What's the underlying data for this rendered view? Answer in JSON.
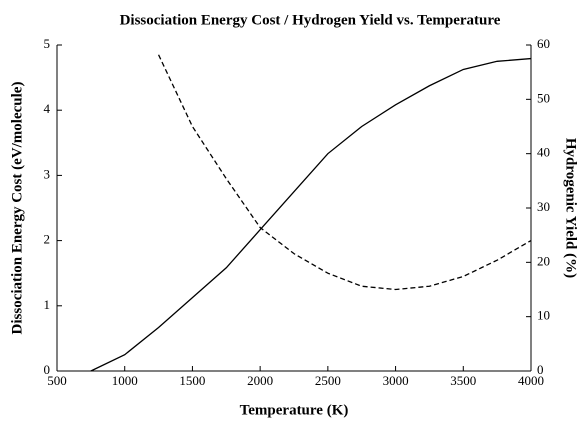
{
  "chart_data": {
    "type": "line",
    "title": "Dissociation Energy Cost / Hydrogen Yield vs. Temperature",
    "xlabel": "Temperature (K)",
    "ylabel": "Dissociation Energy Cost (eV/molecule)",
    "y2label": "Hydrogenic Yield (%)",
    "x": [
      750,
      1000,
      1250,
      1500,
      1750,
      2000,
      2250,
      2500,
      2750,
      3000,
      3250,
      3500,
      3750,
      4000
    ],
    "series": [
      {
        "color": "#000000",
        "style": "dashed",
        "axis": "y",
        "values": [
          null,
          null,
          4.85,
          3.75,
          2.95,
          2.2,
          1.8,
          1.5,
          1.3,
          1.25,
          1.3,
          1.45,
          1.7,
          2.0
        ]
      },
      {
        "color": "#000000",
        "style": "solid",
        "axis": "y2",
        "values": [
          0,
          3,
          8,
          13.5,
          19,
          26,
          33,
          40,
          45,
          49,
          52.5,
          55.5,
          57,
          57.5
        ]
      }
    ],
    "xlim": [
      500,
      4000
    ],
    "xticks": [
      500,
      1000,
      1500,
      2000,
      2500,
      3000,
      3500,
      4000
    ],
    "ylim": [
      0,
      5
    ],
    "yticks": [
      0,
      1,
      2,
      3,
      4,
      5
    ],
    "y2lim": [
      0,
      60
    ],
    "y2ticks": [
      0,
      10,
      20,
      30,
      40,
      50,
      60
    ],
    "grid": false
  }
}
